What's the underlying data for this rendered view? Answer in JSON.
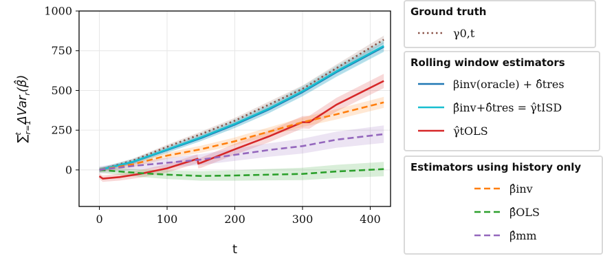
{
  "chart_data": {
    "type": "line",
    "xlabel": "t",
    "ylabel": "∑_{r=1}^{t} ΔVar_r(β̂)",
    "xlim": [
      -30,
      430
    ],
    "ylim": [
      -230,
      1000
    ],
    "xticks": [
      0,
      100,
      200,
      300,
      400
    ],
    "yticks": [
      0,
      250,
      500,
      750,
      1000
    ],
    "grid": true,
    "series": [
      {
        "name": "γ_{0,t}",
        "group": "Ground truth",
        "color": "#8c564b",
        "style": "dotted",
        "x": [
          0,
          50,
          100,
          150,
          200,
          250,
          300,
          350,
          420
        ],
        "y": [
          0,
          60,
          145,
          225,
          310,
          410,
          510,
          640,
          820
        ],
        "band": 25
      },
      {
        "name": "β^inv(oracle) + δ̂_t^res",
        "group": "Rolling window estimators",
        "color": "#1f77b4",
        "style": "solid",
        "x": [
          0,
          50,
          100,
          150,
          200,
          250,
          300,
          350,
          420
        ],
        "y": [
          0,
          50,
          125,
          200,
          285,
          380,
          490,
          615,
          775
        ],
        "band": 30
      },
      {
        "name": "β̂^inv+δ̂_t^res = γ̂_t^ISD",
        "group": "Rolling window estimators",
        "color": "#17becf",
        "style": "solid",
        "x": [
          0,
          50,
          100,
          150,
          200,
          250,
          300,
          350,
          420
        ],
        "y": [
          0,
          52,
          128,
          205,
          290,
          385,
          495,
          620,
          780
        ],
        "band": 38
      },
      {
        "name": "γ̂_t^OLS",
        "group": "Rolling window estimators",
        "color": "#d62728",
        "style": "solid",
        "x": [
          0,
          5,
          30,
          60,
          100,
          145,
          146,
          150,
          200,
          250,
          300,
          310,
          350,
          420
        ],
        "y": [
          -40,
          -55,
          -45,
          -25,
          10,
          70,
          40,
          45,
          130,
          210,
          300,
          300,
          410,
          560
        ],
        "band": 45
      },
      {
        "name": "β̂^inv",
        "group": "Estimators using history only",
        "color": "#ff7f0e",
        "style": "dashed",
        "x": [
          0,
          50,
          100,
          150,
          200,
          250,
          300,
          350,
          420
        ],
        "y": [
          0,
          35,
          90,
          130,
          180,
          240,
          300,
          350,
          425
        ],
        "band": 35
      },
      {
        "name": "β̂^OLS",
        "group": "Estimators using history only",
        "color": "#2ca02c",
        "style": "dashed",
        "x": [
          0,
          30,
          60,
          100,
          150,
          200,
          250,
          300,
          350,
          420
        ],
        "y": [
          0,
          -10,
          -20,
          -30,
          -38,
          -35,
          -30,
          -25,
          -10,
          5
        ],
        "band": 45
      },
      {
        "name": "β̂^mm",
        "group": "Estimators using history only",
        "color": "#9467bd",
        "style": "dashed",
        "x": [
          0,
          50,
          100,
          150,
          200,
          250,
          300,
          350,
          420
        ],
        "y": [
          0,
          25,
          45,
          65,
          95,
          125,
          150,
          190,
          225
        ],
        "band": 55
      }
    ]
  },
  "legend": {
    "groups": [
      {
        "title": "Ground truth",
        "items": [
          {
            "label": "γ0,t",
            "color": "#8c564b",
            "style": "dotted",
            "icon": "dotted-line"
          }
        ]
      },
      {
        "title": "Rolling window estimators",
        "items": [
          {
            "label": "βinv(oracle) + δ̂tres",
            "color": "#1f77b4",
            "style": "solid",
            "icon": "solid-line"
          },
          {
            "label": "β̂inv+δ̂tres = γ̂tISD",
            "color": "#17becf",
            "style": "solid",
            "icon": "solid-line"
          },
          {
            "label": "γ̂tOLS",
            "color": "#d62728",
            "style": "solid",
            "icon": "solid-line"
          }
        ]
      },
      {
        "title": "Estimators using history only",
        "items": [
          {
            "label": "β̂inv",
            "color": "#ff7f0e",
            "style": "dashed",
            "icon": "dashed-line"
          },
          {
            "label": "β̂OLS",
            "color": "#2ca02c",
            "style": "dashed",
            "icon": "dashed-line"
          },
          {
            "label": "β̂mm",
            "color": "#9467bd",
            "style": "dashed",
            "icon": "dashed-line"
          }
        ]
      }
    ]
  }
}
